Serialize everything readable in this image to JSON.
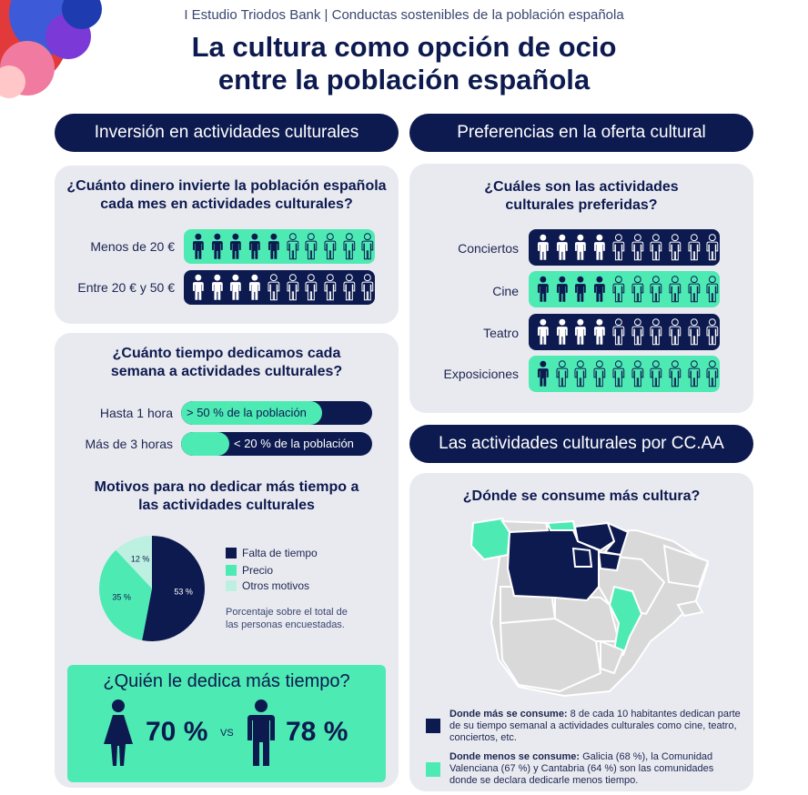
{
  "header": {
    "subtitle": "I Estudio Triodos Bank | Conductas sostenibles de la población española",
    "title_line1": "La cultura como opción de ocio",
    "title_line2": "entre la población española"
  },
  "colors": {
    "navy": "#0d1a4f",
    "green": "#4eeab4",
    "light_green": "#bdf0e0",
    "card": "#e9eaf0",
    "map_grey": "#d9d9d9"
  },
  "sections": {
    "inversion": "Inversión en actividades culturales",
    "preferencias": "Preferencias en la oferta cultural",
    "ccaa": "Las actividades culturales por CC.AA"
  },
  "money": {
    "question_line1": "¿Cuánto dinero invierte la población española",
    "question_line2": "cada mes en actividades culturales?",
    "rows": [
      {
        "label": "Menos de 20 €",
        "filled": 5,
        "total": 10
      },
      {
        "label": "Entre 20 € y 50 €",
        "filled": 4,
        "total": 10
      }
    ]
  },
  "time": {
    "question_line1": "¿Cuánto tiempo dedicamos cada",
    "question_line2": "semana a actividades culturales?",
    "rows": [
      {
        "label": "Hasta 1 hora",
        "value_text": "> 50 % de la población",
        "fill": 0.74
      },
      {
        "label": "Más de 3 horas",
        "value_text": "< 20 % de la población",
        "fill": 0.25
      }
    ]
  },
  "motivos": {
    "title_line1": "Motivos para no dedicar más tiempo a",
    "title_line2": "las actividades culturales",
    "note_line1": "Porcentaje sobre el total de",
    "note_line2": "las personas encuestadas."
  },
  "chart_data": {
    "type": "pie",
    "slices": [
      {
        "name": "Falta de tiempo",
        "value": 53,
        "label": "53 %",
        "color": "#0d1a4f"
      },
      {
        "name": "Precio",
        "value": 35,
        "label": "35 %",
        "color": "#4eeab4"
      },
      {
        "name": "Otros motivos",
        "value": 12,
        "label": "12 %",
        "color": "#bdf0e0"
      }
    ]
  },
  "quien": {
    "title": "¿Quién le dedica más tiempo?",
    "women_value": "70 %",
    "vs": "VS",
    "men_value": "78 %"
  },
  "preferidas": {
    "question_line1": "¿Cuáles son las actividades",
    "question_line2": "culturales preferidas?",
    "rows": [
      {
        "label": "Conciertos",
        "filled": 4,
        "style": "dark"
      },
      {
        "label": "Cine",
        "filled": 4,
        "style": "green"
      },
      {
        "label": "Teatro",
        "filled": 4,
        "style": "dark"
      },
      {
        "label": "Exposiciones",
        "filled": 1,
        "style": "green"
      }
    ]
  },
  "map": {
    "question": "¿Dónde se consume más cultura?",
    "most_bold": "Donde más se consume:",
    "most_text": " 8 de cada 10 habitantes dedican parte de su tiempo semanal a actividades culturales como cine, teatro, conciertos, etc.",
    "least_bold": "Donde menos se consume:",
    "least_text": " Galicia (68 %), la Comunidad Valenciana (67 %) y Cantabria (64 %) son las comunidades donde se declara dedicarle menos tiempo."
  }
}
